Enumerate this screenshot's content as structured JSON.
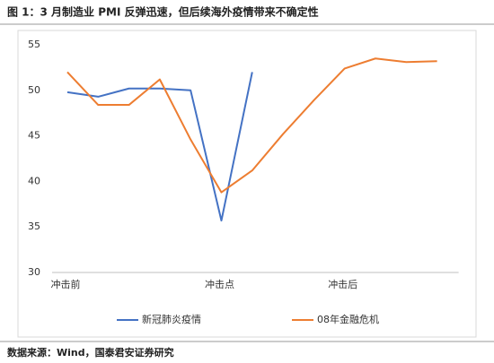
{
  "chart_data": {
    "type": "line",
    "title": "图 1：3 月制造业 PMI 反弹迅速，但后续海外疫情带来不确定性",
    "source": "数据来源：Wind，国泰君安证券研究",
    "categories": [
      "冲击前",
      null,
      null,
      null,
      null,
      "冲击点",
      null,
      null,
      null,
      "冲击后",
      null,
      null,
      null
    ],
    "series": [
      {
        "name": "新冠肺炎疫情",
        "color": "#4472c4",
        "values": [
          49.8,
          49.3,
          50.2,
          50.2,
          50.0,
          35.7,
          52.0,
          null,
          null,
          null,
          null,
          null,
          null
        ]
      },
      {
        "name": "08年金融危机",
        "color": "#ed7d31",
        "values": [
          52.0,
          48.4,
          48.4,
          51.2,
          44.6,
          38.8,
          41.2,
          45.2,
          48.9,
          52.4,
          53.5,
          53.1,
          53.2
        ]
      }
    ],
    "ylim": [
      30,
      55
    ],
    "yticks": [
      30,
      35,
      40,
      45,
      50,
      55
    ],
    "grid": false
  }
}
